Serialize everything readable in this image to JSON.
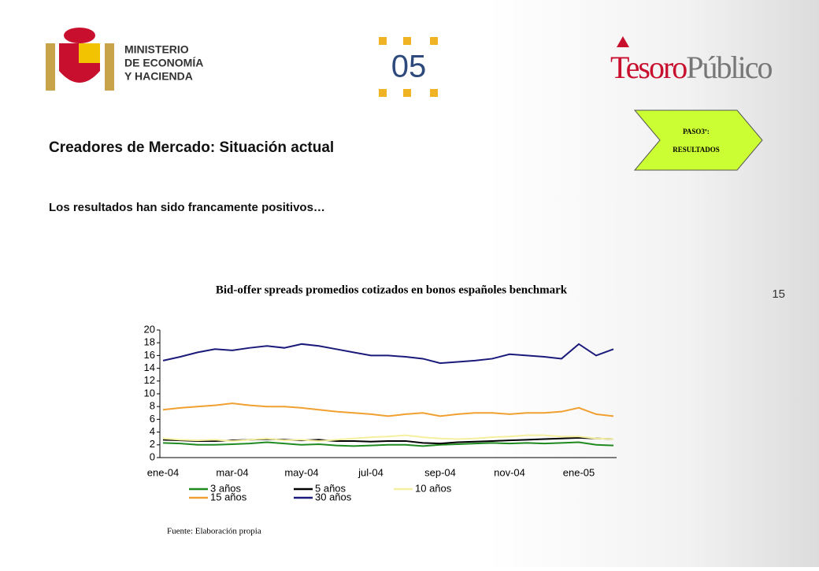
{
  "header": {
    "ministry": [
      "MINISTERIO",
      "DE ECONOMÍA",
      "Y HACIENDA"
    ],
    "section_number": "05",
    "brand": {
      "part1": "Tesoro",
      "part2": "Público"
    },
    "step": [
      "PASO3º:",
      "RESULTADOS"
    ]
  },
  "title": "Creadores de Mercado: Situación actual",
  "subtitle": "Los resultados han sido francamente positivos…",
  "page_number": "15",
  "source": "Fuente: Elaboración propia",
  "chart_data": {
    "type": "line",
    "title": "Bid-offer spreads promedios cotizados en bonos españoles benchmark",
    "categories": [
      "ene-04",
      null,
      null,
      null,
      "mar-04",
      null,
      null,
      null,
      "may-04",
      null,
      null,
      null,
      "jul-04",
      null,
      null,
      null,
      "sep-04",
      null,
      null,
      null,
      "nov-04",
      null,
      null,
      null,
      "ene-05",
      null,
      null
    ],
    "ylim": [
      0,
      20
    ],
    "yticks": [
      0,
      2,
      4,
      6,
      8,
      10,
      12,
      14,
      16,
      18,
      20
    ],
    "legend": "bottom",
    "series": [
      {
        "name": "3 años",
        "color": "#1f8a1f",
        "values": [
          2.3,
          2.2,
          2,
          2,
          2.1,
          2.2,
          2.4,
          2.2,
          2,
          2.1,
          1.9,
          1.8,
          1.9,
          2,
          2,
          1.8,
          2,
          2.1,
          2.2,
          2.3,
          2.2,
          2.3,
          2.2,
          2.3,
          2.4,
          2,
          1.9
        ]
      },
      {
        "name": "5 años",
        "color": "#000000",
        "values": [
          2.8,
          2.7,
          2.6,
          2.6,
          2.7,
          2.8,
          2.9,
          2.8,
          2.7,
          2.8,
          2.6,
          2.6,
          2.5,
          2.6,
          2.6,
          2.3,
          2.2,
          2.4,
          2.5,
          2.6,
          2.7,
          2.8,
          2.9,
          3,
          3.1,
          3,
          2.9
        ]
      },
      {
        "name": "10 años",
        "color": "#f5f0a0",
        "values": [
          3,
          2.8,
          2.7,
          2.8,
          2.6,
          2.8,
          3,
          2.7,
          2.8,
          2.6,
          2.8,
          3,
          3.2,
          3.3,
          3.5,
          3.2,
          3,
          2.9,
          3,
          3.2,
          3.3,
          3.5,
          3.5,
          3.3,
          3.3,
          3,
          2.9
        ]
      },
      {
        "name": "15 años",
        "color": "#f0a030",
        "values": [
          7.5,
          7.8,
          8,
          8.2,
          8.5,
          8.2,
          8,
          8,
          7.8,
          7.5,
          7.2,
          7,
          6.8,
          6.5,
          6.8,
          7,
          6.5,
          6.8,
          7,
          7,
          6.8,
          7,
          7,
          7.2,
          7.8,
          6.8,
          6.5
        ]
      },
      {
        "name": "30 años",
        "color": "#1a1a7a",
        "values": [
          15.2,
          15.8,
          16.5,
          17,
          16.8,
          17.2,
          17.5,
          17.2,
          17.8,
          17.5,
          17,
          16.5,
          16,
          16,
          15.8,
          15.5,
          14.8,
          15,
          15.2,
          15.5,
          16.2,
          16,
          15.8,
          15.5,
          17.8,
          16,
          17
        ]
      }
    ]
  }
}
